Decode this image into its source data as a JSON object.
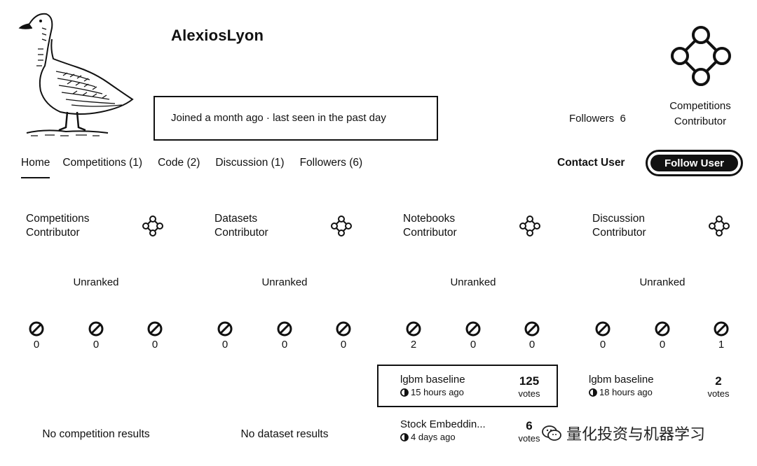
{
  "profile": {
    "username": "AlexiosLyon",
    "joined": "Joined a month ago · last seen in the past day",
    "followers": "Followers  6",
    "tier_label_line1": "Competitions",
    "tier_label_line2": "Contributor"
  },
  "tabs": [
    {
      "label": "Home",
      "active": true
    },
    {
      "label": "Competitions (1)"
    },
    {
      "label": "Code (2)"
    },
    {
      "label": "Discussion (1)"
    },
    {
      "label": "Followers (6)"
    }
  ],
  "actions": {
    "contact": "Contact User",
    "follow": "Follow User"
  },
  "categories": [
    {
      "title_line1": "Competitions",
      "title_line2": "Contributor",
      "rank": "Unranked",
      "medals": [
        "0",
        "0",
        "0"
      ],
      "no_results": "No competition results"
    },
    {
      "title_line1": "Datasets",
      "title_line2": "Contributor",
      "rank": "Unranked",
      "medals": [
        "0",
        "0",
        "0"
      ],
      "no_results": "No dataset results"
    },
    {
      "title_line1": "Notebooks",
      "title_line2": "Contributor",
      "rank": "Unranked",
      "medals": [
        "2",
        "0",
        "0"
      ],
      "items": [
        {
          "title": "lgbm baseline",
          "meta": "15 hours ago",
          "votes": "125",
          "votes_label": "votes"
        },
        {
          "title": "Stock Embeddin...",
          "meta": "4 days ago",
          "votes": "6",
          "votes_label": "votes"
        }
      ]
    },
    {
      "title_line1": "Discussion",
      "title_line2": "Contributor",
      "rank": "Unranked",
      "medals": [
        "0",
        "0",
        "1"
      ],
      "items": [
        {
          "title": "lgbm baseline",
          "meta": "18 hours ago",
          "votes": "2",
          "votes_label": "votes"
        }
      ]
    }
  ],
  "watermark": "量化投资与机器学习",
  "icons": {
    "tier": "contributor-tier-icon",
    "medal": "medal-icon",
    "time": "clock-icon",
    "wechat": "wechat-logo-icon"
  }
}
